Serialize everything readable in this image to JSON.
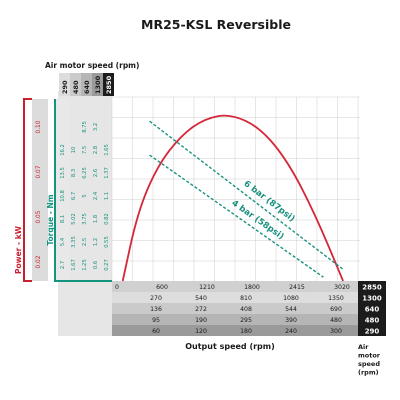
{
  "title": "MR25-KSL Reversible",
  "labels": {
    "air_motor_speed_top": "Air motor speed (rpm)",
    "power": "Power - kW",
    "torque": "Torque - Nm",
    "output_speed": "Output speed (rpm)",
    "air_motor_speed_side": [
      "Air",
      "motor",
      "speed",
      "(rpm)"
    ]
  },
  "colors": {
    "curve": "#d4283a",
    "pressure": "#19917f",
    "torque_frame": "#13947f",
    "power_frame": "#c8202f",
    "grid": "#cfcfcf",
    "header_dark": "#1c1c1c",
    "row_grey_1": "#9a9a9a",
    "row_grey_2": "#b5b5b5",
    "row_grey_3": "#cacaca",
    "row_grey_4": "#dddddd",
    "panel_grey": "#e6e6e6"
  },
  "chart_data": {
    "type": "line",
    "series": [
      {
        "kind": "power_curve",
        "x": [
          60,
          250,
          500,
          800,
          1100,
          1425,
          1800,
          2150,
          2500,
          2850
        ],
        "y": [
          0.0,
          0.045,
          0.075,
          0.095,
          0.106,
          0.109,
          0.1,
          0.078,
          0.043,
          0.0
        ]
      }
    ],
    "pressure_lines": [
      {
        "label": "6 bar (87psi)",
        "x": [
          400,
          2850
        ],
        "y": [
          16.5,
          1.2
        ]
      },
      {
        "label": "4 bar (58psi)",
        "x": [
          400,
          2600
        ],
        "y": [
          13.0,
          0.4
        ]
      }
    ],
    "xlim": [
      0,
      3000
    ],
    "ylim_power": [
      0,
      0.12
    ],
    "ylim_torque": [
      0,
      19
    ],
    "output_speed_ticks": [
      "0",
      "600",
      "1210",
      "1800",
      "2415",
      "3020"
    ],
    "output_speed_rows": [
      [
        "270",
        "540",
        "810",
        "1080",
        "1350"
      ],
      [
        "136",
        "272",
        "408",
        "544",
        "690"
      ],
      [
        "95",
        "190",
        "295",
        "390",
        "480"
      ],
      [
        "60",
        "120",
        "180",
        "240",
        "300"
      ]
    ],
    "air_motor_speeds": [
      "2850",
      "1300",
      "640",
      "480",
      "290"
    ],
    "air_motor_header": [
      "290",
      "480",
      "640",
      "1300",
      "2850"
    ],
    "power_ticks": [
      "0.02",
      "0.05",
      "0.07",
      "0.10"
    ],
    "torque_columns": [
      [
        "2.7",
        "5.4",
        "8.1",
        "10.8",
        "13.5",
        "16.2"
      ],
      [
        "1.67",
        "3.35",
        "5.02",
        "6.7",
        "8.3",
        "10"
      ],
      [
        "1.25",
        "2.5",
        "3.75",
        "5",
        "6.25",
        "7.5",
        "8.75"
      ],
      [
        "0.6",
        "1.2",
        "1.8",
        "2.4",
        "2.6",
        "2.8",
        "3.2"
      ],
      [
        "0.27",
        "0.55",
        "0.82",
        "1.1",
        "1.37",
        "1.65"
      ]
    ]
  }
}
